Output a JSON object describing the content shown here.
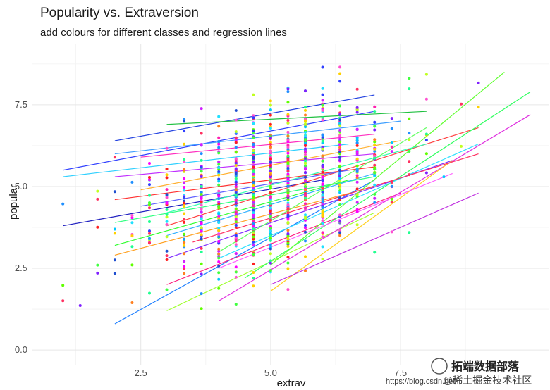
{
  "chart_data": {
    "type": "scatter",
    "title": "Popularity vs. Extraversion",
    "subtitle": "add colours for different classes and regression lines",
    "xlabel": "extrav",
    "ylabel": "popular",
    "xlim": [
      0.4,
      10.35
    ],
    "ylim": [
      -0.45,
      9.35
    ],
    "x_ticks": [
      2.5,
      5.0,
      7.5
    ],
    "x_tick_labels": [
      "2.5",
      "5.0",
      "7.5"
    ],
    "y_ticks": [
      0.0,
      2.5,
      5.0,
      7.5
    ],
    "y_tick_labels": [
      "0.0",
      "2.5",
      "5.0",
      "7.5"
    ],
    "grid": true,
    "legend": "none",
    "colors_by": "class",
    "regression_lines": [
      {
        "x": [
          1.0,
          7.0
        ],
        "y": [
          5.5,
          7.3
        ],
        "color": "#3040ff"
      },
      {
        "x": [
          1.0,
          6.5
        ],
        "y": [
          5.3,
          6.3
        ],
        "color": "#30d0ff"
      },
      {
        "x": [
          1.0,
          6.0
        ],
        "y": [
          3.8,
          5.2
        ],
        "color": "#2020c0"
      },
      {
        "x": [
          2.0,
          7.0
        ],
        "y": [
          6.4,
          7.8
        ],
        "color": "#2040e0"
      },
      {
        "x": [
          2.0,
          7.5
        ],
        "y": [
          6.0,
          7.0
        ],
        "color": "#40a0ff"
      },
      {
        "x": [
          3.0,
          8.0
        ],
        "y": [
          6.9,
          7.3
        ],
        "color": "#20c040"
      },
      {
        "x": [
          2.5,
          7.0
        ],
        "y": [
          5.9,
          6.6
        ],
        "color": "#ff30c0"
      },
      {
        "x": [
          2.0,
          7.0
        ],
        "y": [
          5.3,
          6.0
        ],
        "color": "#c030ff"
      },
      {
        "x": [
          2.0,
          7.0
        ],
        "y": [
          4.6,
          5.6
        ],
        "color": "#ff3030"
      },
      {
        "x": [
          2.0,
          7.0
        ],
        "y": [
          3.9,
          5.3
        ],
        "color": "#30ff80"
      },
      {
        "x": [
          2.0,
          6.5
        ],
        "y": [
          3.2,
          5.2
        ],
        "color": "#30ff30"
      },
      {
        "x": [
          2.0,
          7.0
        ],
        "y": [
          2.9,
          5.0
        ],
        "color": "#ffa020"
      },
      {
        "x": [
          2.0,
          7.0
        ],
        "y": [
          0.8,
          5.2
        ],
        "color": "#2080ff"
      },
      {
        "x": [
          3.0,
          7.0
        ],
        "y": [
          1.2,
          4.2
        ],
        "color": "#a0ff30"
      },
      {
        "x": [
          3.0,
          7.5
        ],
        "y": [
          2.0,
          4.8
        ],
        "color": "#ff2080"
      },
      {
        "x": [
          3.0,
          8.5
        ],
        "y": [
          2.8,
          5.8
        ],
        "color": "#8030ff"
      },
      {
        "x": [
          3.0,
          9.0
        ],
        "y": [
          3.8,
          6.8
        ],
        "color": "#ff4040"
      },
      {
        "x": [
          4.0,
          10.0
        ],
        "y": [
          1.5,
          7.2
        ],
        "color": "#e030e0"
      },
      {
        "x": [
          4.5,
          10.0
        ],
        "y": [
          2.2,
          7.9
        ],
        "color": "#30ff60"
      },
      {
        "x": [
          5.0,
          9.5
        ],
        "y": [
          2.6,
          8.5
        ],
        "color": "#60ff30"
      },
      {
        "x": [
          5.0,
          8.5
        ],
        "y": [
          1.8,
          5.8
        ],
        "color": "#ffd020"
      },
      {
        "x": [
          5.0,
          9.0
        ],
        "y": [
          2.0,
          4.8
        ],
        "color": "#c030e0"
      },
      {
        "x": [
          4.0,
          9.0
        ],
        "y": [
          2.8,
          6.3
        ],
        "color": "#30e0ff"
      },
      {
        "x": [
          3.5,
          9.0
        ],
        "y": [
          3.3,
          6.0
        ],
        "color": "#ff3060"
      },
      {
        "x": [
          3.0,
          8.0
        ],
        "y": [
          4.2,
          6.3
        ],
        "color": "#30ffb0"
      },
      {
        "x": [
          2.5,
          7.5
        ],
        "y": [
          4.9,
          6.4
        ],
        "color": "#ffb030"
      },
      {
        "x": [
          3.0,
          7.0
        ],
        "y": [
          3.5,
          5.4
        ],
        "color": "#30b0ff"
      },
      {
        "x": [
          4.0,
          8.5
        ],
        "y": [
          2.5,
          5.4
        ],
        "color": "#ff60ff"
      },
      {
        "x": [
          4.0,
          8.0
        ],
        "y": [
          3.0,
          6.8
        ],
        "color": "#60ff60"
      },
      {
        "x": [
          2.5,
          6.5
        ],
        "y": [
          4.4,
          5.5
        ],
        "color": "#6060ff"
      }
    ]
  },
  "watermark": {
    "main": "拓端数据部落",
    "sub": "@稀土掘金技术社区",
    "faint": "https://blog.csdn.net/"
  }
}
